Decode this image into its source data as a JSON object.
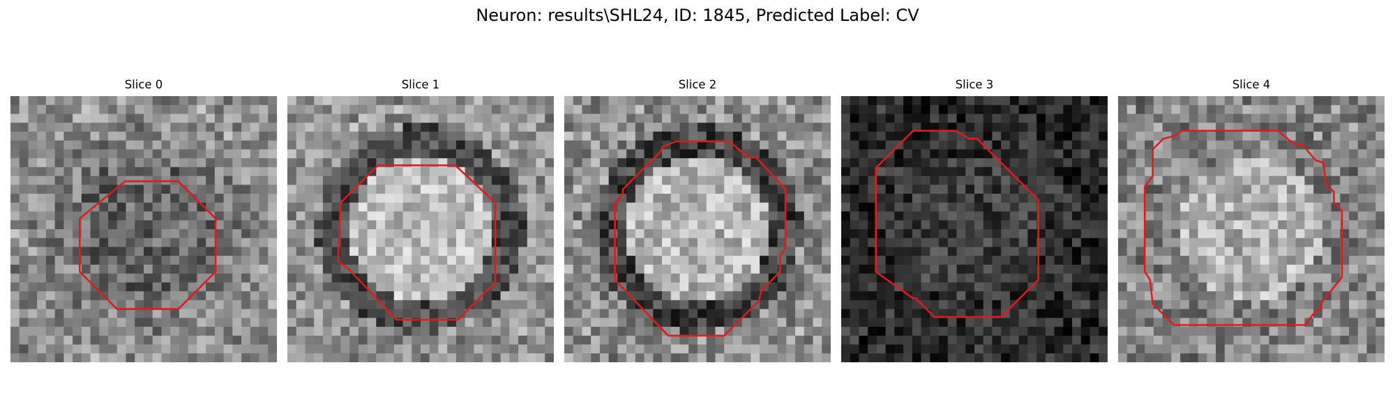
{
  "figure": {
    "title": "Neuron: results\\SHL24, ID: 1845, Predicted Label: CV"
  },
  "colors": {
    "contour": "#e01b1b",
    "background": "#ffffff"
  },
  "slices": [
    {
      "title": "Slice 0",
      "seed": 11,
      "base": 0.56,
      "spread": 0.2,
      "inner": -0.16,
      "ring": -0.06,
      "outerVar": 0.05,
      "contour": [
        [
          0.43,
          0.32
        ],
        [
          0.63,
          0.32
        ],
        [
          0.77,
          0.46
        ],
        [
          0.77,
          0.66
        ],
        [
          0.63,
          0.8
        ],
        [
          0.4,
          0.8
        ],
        [
          0.26,
          0.66
        ],
        [
          0.26,
          0.46
        ]
      ]
    },
    {
      "title": "Slice 1",
      "seed": 23,
      "base": 0.58,
      "spread": 0.18,
      "inner": 0.16,
      "ring": -0.28,
      "outerVar": 0.06,
      "contour": [
        [
          0.34,
          0.26
        ],
        [
          0.63,
          0.26
        ],
        [
          0.78,
          0.4
        ],
        [
          0.78,
          0.7
        ],
        [
          0.64,
          0.84
        ],
        [
          0.41,
          0.84
        ],
        [
          0.23,
          0.65
        ],
        [
          0.19,
          0.62
        ],
        [
          0.2,
          0.4
        ]
      ]
    },
    {
      "title": "Slice 2",
      "seed": 37,
      "base": 0.56,
      "spread": 0.2,
      "inner": 0.16,
      "ring": -0.3,
      "outerVar": 0.05,
      "contour": [
        [
          0.42,
          0.17
        ],
        [
          0.62,
          0.17
        ],
        [
          0.69,
          0.23
        ],
        [
          0.72,
          0.23
        ],
        [
          0.83,
          0.35
        ],
        [
          0.83,
          0.57
        ],
        [
          0.81,
          0.6
        ],
        [
          0.81,
          0.66
        ],
        [
          0.74,
          0.73
        ],
        [
          0.73,
          0.77
        ],
        [
          0.6,
          0.9
        ],
        [
          0.39,
          0.9
        ],
        [
          0.19,
          0.69
        ],
        [
          0.19,
          0.4
        ],
        [
          0.22,
          0.37
        ],
        [
          0.22,
          0.35
        ],
        [
          0.36,
          0.21
        ],
        [
          0.37,
          0.19
        ]
      ]
    },
    {
      "title": "Slice 3",
      "seed": 53,
      "base": 0.16,
      "spread": 0.16,
      "inner": 0.08,
      "ring": 0.03,
      "outerVar": 0.05,
      "contour": [
        [
          0.27,
          0.13
        ],
        [
          0.43,
          0.13
        ],
        [
          0.48,
          0.16
        ],
        [
          0.51,
          0.16
        ],
        [
          0.74,
          0.39
        ],
        [
          0.74,
          0.69
        ],
        [
          0.6,
          0.83
        ],
        [
          0.35,
          0.83
        ],
        [
          0.28,
          0.76
        ],
        [
          0.27,
          0.76
        ],
        [
          0.13,
          0.66
        ],
        [
          0.13,
          0.27
        ]
      ]
    },
    {
      "title": "Slice 4",
      "seed": 71,
      "base": 0.52,
      "spread": 0.2,
      "inner": 0.18,
      "ring": -0.02,
      "outerVar": 0.05,
      "contour": [
        [
          0.3,
          0.13
        ],
        [
          0.6,
          0.13
        ],
        [
          0.66,
          0.18
        ],
        [
          0.69,
          0.18
        ],
        [
          0.74,
          0.24
        ],
        [
          0.77,
          0.25
        ],
        [
          0.78,
          0.33
        ],
        [
          0.81,
          0.36
        ],
        [
          0.81,
          0.4
        ],
        [
          0.84,
          0.43
        ],
        [
          0.84,
          0.68
        ],
        [
          0.8,
          0.73
        ],
        [
          0.76,
          0.78
        ],
        [
          0.76,
          0.8
        ],
        [
          0.74,
          0.81
        ],
        [
          0.7,
          0.86
        ],
        [
          0.21,
          0.86
        ],
        [
          0.13,
          0.78
        ],
        [
          0.12,
          0.69
        ],
        [
          0.1,
          0.66
        ],
        [
          0.1,
          0.34
        ],
        [
          0.13,
          0.3
        ],
        [
          0.13,
          0.2
        ],
        [
          0.17,
          0.16
        ],
        [
          0.21,
          0.15
        ],
        [
          0.24,
          0.13
        ]
      ]
    }
  ]
}
